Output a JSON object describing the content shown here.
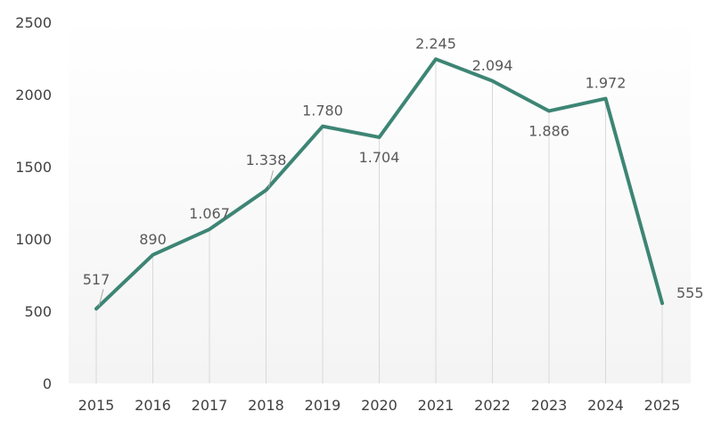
{
  "chart_data": {
    "type": "line",
    "title": "",
    "xlabel": "",
    "ylabel": "",
    "x": [
      "2015",
      "2016",
      "2017",
      "2018",
      "2019",
      "2020",
      "2021",
      "2022",
      "2023",
      "2024",
      "2025"
    ],
    "series": [
      {
        "values": [
          517,
          890,
          1067,
          1338,
          1780,
          1704,
          2245,
          2094,
          1886,
          1972,
          555
        ],
        "labels": [
          "517",
          "890",
          "1.067",
          "1.338",
          "1.780",
          "1.704",
          "2.245",
          "2.094",
          "1.886",
          "1.972",
          "555"
        ],
        "color": "#3d8574"
      }
    ],
    "ylim": [
      0,
      2500
    ],
    "yticks": [
      0,
      500,
      1000,
      1500,
      2000,
      2500
    ],
    "ytick_labels": [
      "0",
      "500",
      "1000",
      "1500",
      "2000",
      "2500"
    ],
    "grid": "vertical drop lines per category",
    "legend": "none",
    "plot_background": "#f4f4f4",
    "gridline_color": "#d9d9d9"
  }
}
